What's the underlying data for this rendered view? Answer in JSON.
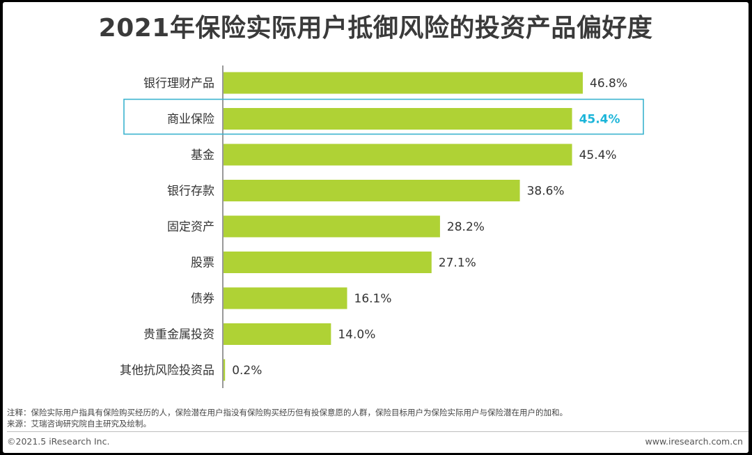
{
  "title": "2021年保险实际用户抵御风险的投资产品偏好度",
  "chart_data": {
    "type": "bar",
    "orientation": "horizontal",
    "title": "2021年保险实际用户抵御风险的投资产品偏好度",
    "categories": [
      "银行理财产品",
      "商业保险",
      "基金",
      "银行存款",
      "固定资产",
      "股票",
      "债券",
      "贵重金属投资",
      "其他抗风险投资品"
    ],
    "values": [
      46.8,
      45.4,
      45.4,
      38.6,
      28.2,
      27.1,
      16.1,
      14.0,
      0.2
    ],
    "value_labels": [
      "46.8%",
      "45.4%",
      "45.4%",
      "38.6%",
      "28.2%",
      "27.1%",
      "16.1%",
      "14.0%",
      "0.2%"
    ],
    "highlighted_category": "商业保险",
    "unit": "%",
    "xlabel": "",
    "ylabel": "",
    "grid": false,
    "colors": {
      "bar": "#afd235",
      "highlight_box": "#3ab3cf",
      "highlight_text": "#1cb5d9",
      "axis": "#555555"
    }
  },
  "footer": {
    "note": "注释：保险实际用户指具有保险购买经历的人，保险潜在用户指没有保险购买经历但有投保意愿的人群，保险目标用户为保险实际用户与保险潜在用户的加和。",
    "source": "来源：艾瑞咨询研究院自主研究及绘制。",
    "copyright": "©2021.5 iResearch Inc.",
    "website": "www.iresearch.com.cn"
  }
}
